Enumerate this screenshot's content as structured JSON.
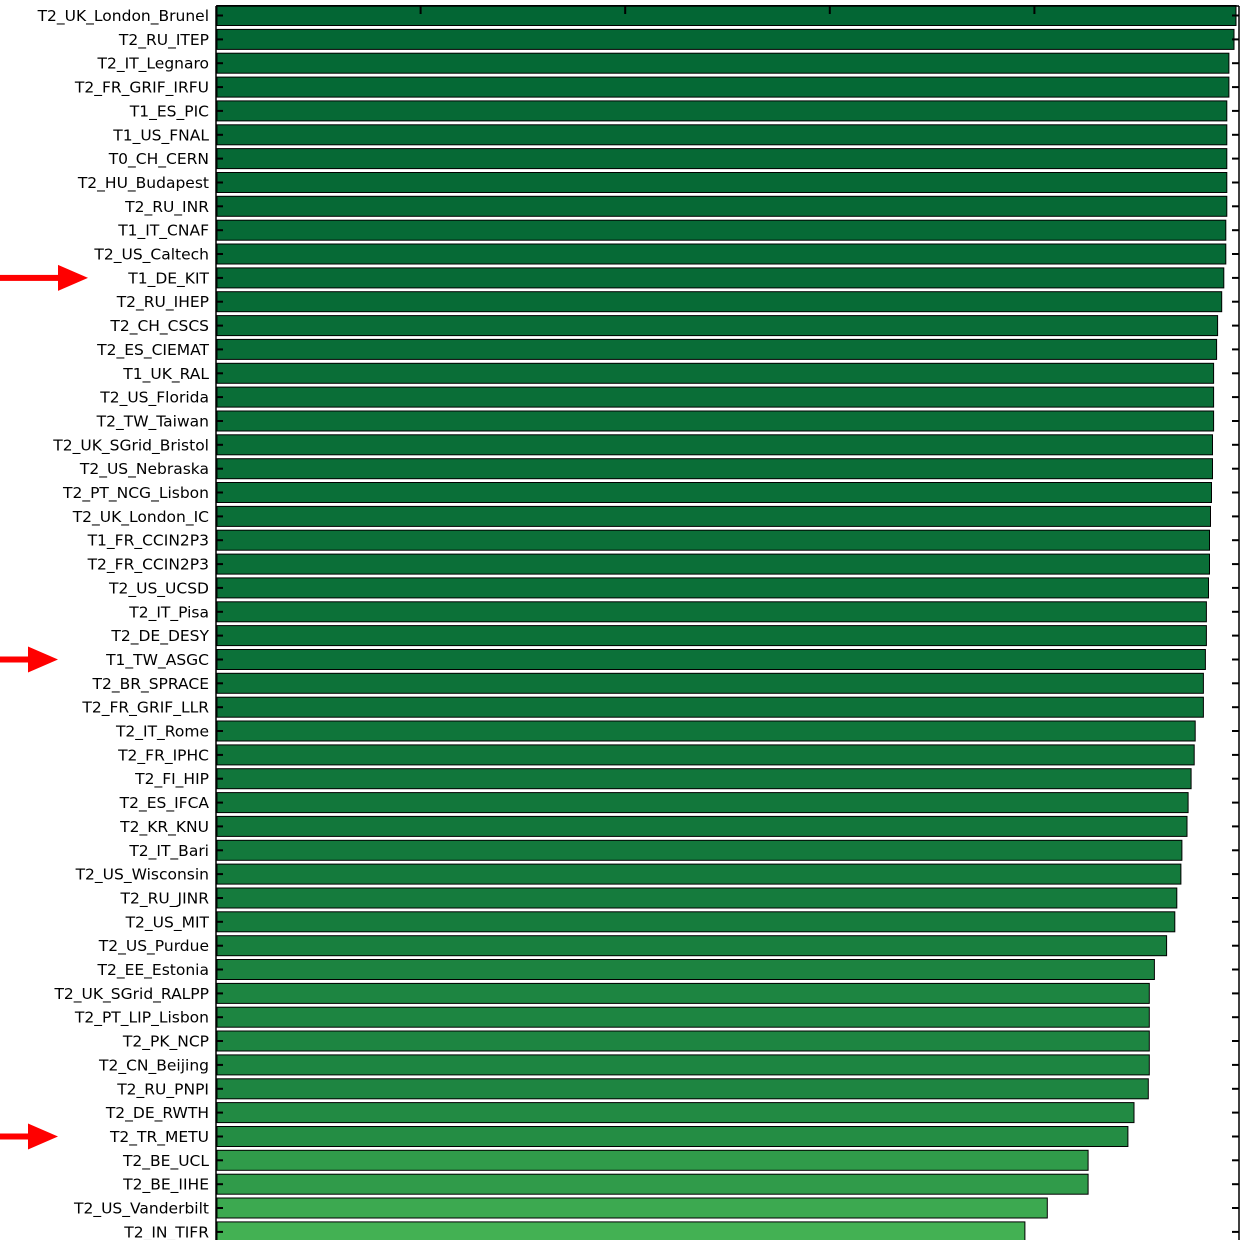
{
  "chart_data": {
    "type": "bar",
    "orientation": "horizontal",
    "title": "",
    "xlabel": "",
    "ylabel": "",
    "xlim": [
      0,
      100
    ],
    "grid": false,
    "legend": "none",
    "categories": [
      "T2_UK_London_Brunel",
      "T2_RU_ITEP",
      "T2_IT_Legnaro",
      "T2_FR_GRIF_IRFU",
      "T1_ES_PIC",
      "T1_US_FNAL",
      "T0_CH_CERN",
      "T2_HU_Budapest",
      "T2_RU_INR",
      "T1_IT_CNAF",
      "T2_US_Caltech",
      "T1_DE_KIT",
      "T2_RU_IHEP",
      "T2_CH_CSCS",
      "T2_ES_CIEMAT",
      "T1_UK_RAL",
      "T2_US_Florida",
      "T2_TW_Taiwan",
      "T2_UK_SGrid_Bristol",
      "T2_US_Nebraska",
      "T2_PT_NCG_Lisbon",
      "T2_UK_London_IC",
      "T1_FR_CCIN2P3",
      "T2_FR_CCIN2P3",
      "T2_US_UCSD",
      "T2_IT_Pisa",
      "T2_DE_DESY",
      "T1_TW_ASGC",
      "T2_BR_SPRACE",
      "T2_FR_GRIF_LLR",
      "T2_IT_Rome",
      "T2_FR_IPHC",
      "T2_FI_HIP",
      "T2_ES_IFCA",
      "T2_KR_KNU",
      "T2_IT_Bari",
      "T2_US_Wisconsin",
      "T2_RU_JINR",
      "T2_US_MIT",
      "T2_US_Purdue",
      "T2_EE_Estonia",
      "T2_UK_SGrid_RALPP",
      "T2_PT_LIP_Lisbon",
      "T2_PK_NCP",
      "T2_CN_Beijing",
      "T2_RU_PNPI",
      "T2_DE_RWTH",
      "T2_TR_METU",
      "T2_BE_UCL",
      "T2_BE_IIHE",
      "T2_US_Vanderbilt",
      "T2_IN_TIFR"
    ],
    "values": [
      100,
      99.8,
      99.3,
      99.3,
      99.1,
      99.1,
      99.1,
      99.1,
      99.1,
      99.0,
      99.0,
      98.8,
      98.6,
      98.2,
      98.1,
      97.8,
      97.8,
      97.8,
      97.7,
      97.7,
      97.6,
      97.5,
      97.4,
      97.4,
      97.3,
      97.1,
      97.1,
      97.0,
      96.8,
      96.8,
      96.0,
      95.9,
      95.6,
      95.3,
      95.2,
      94.7,
      94.6,
      94.2,
      94.0,
      93.2,
      92.0,
      91.5,
      91.5,
      91.5,
      91.5,
      91.4,
      90.0,
      89.4,
      85.5,
      85.5,
      81.5,
      79.3
    ],
    "annotations": [
      {
        "type": "arrow",
        "color": "#ff0000",
        "target": "T1_DE_KIT"
      },
      {
        "type": "arrow",
        "color": "#ff0000",
        "target": "T1_TW_ASGC"
      },
      {
        "type": "arrow",
        "color": "#ff0000",
        "target": "T2_TR_METU"
      }
    ]
  },
  "colors": {
    "bar_dark": "#036634",
    "bar_light": "#47b655",
    "bar_edge": "#000000",
    "arrow": "#ff0000",
    "axis": "#000000"
  }
}
